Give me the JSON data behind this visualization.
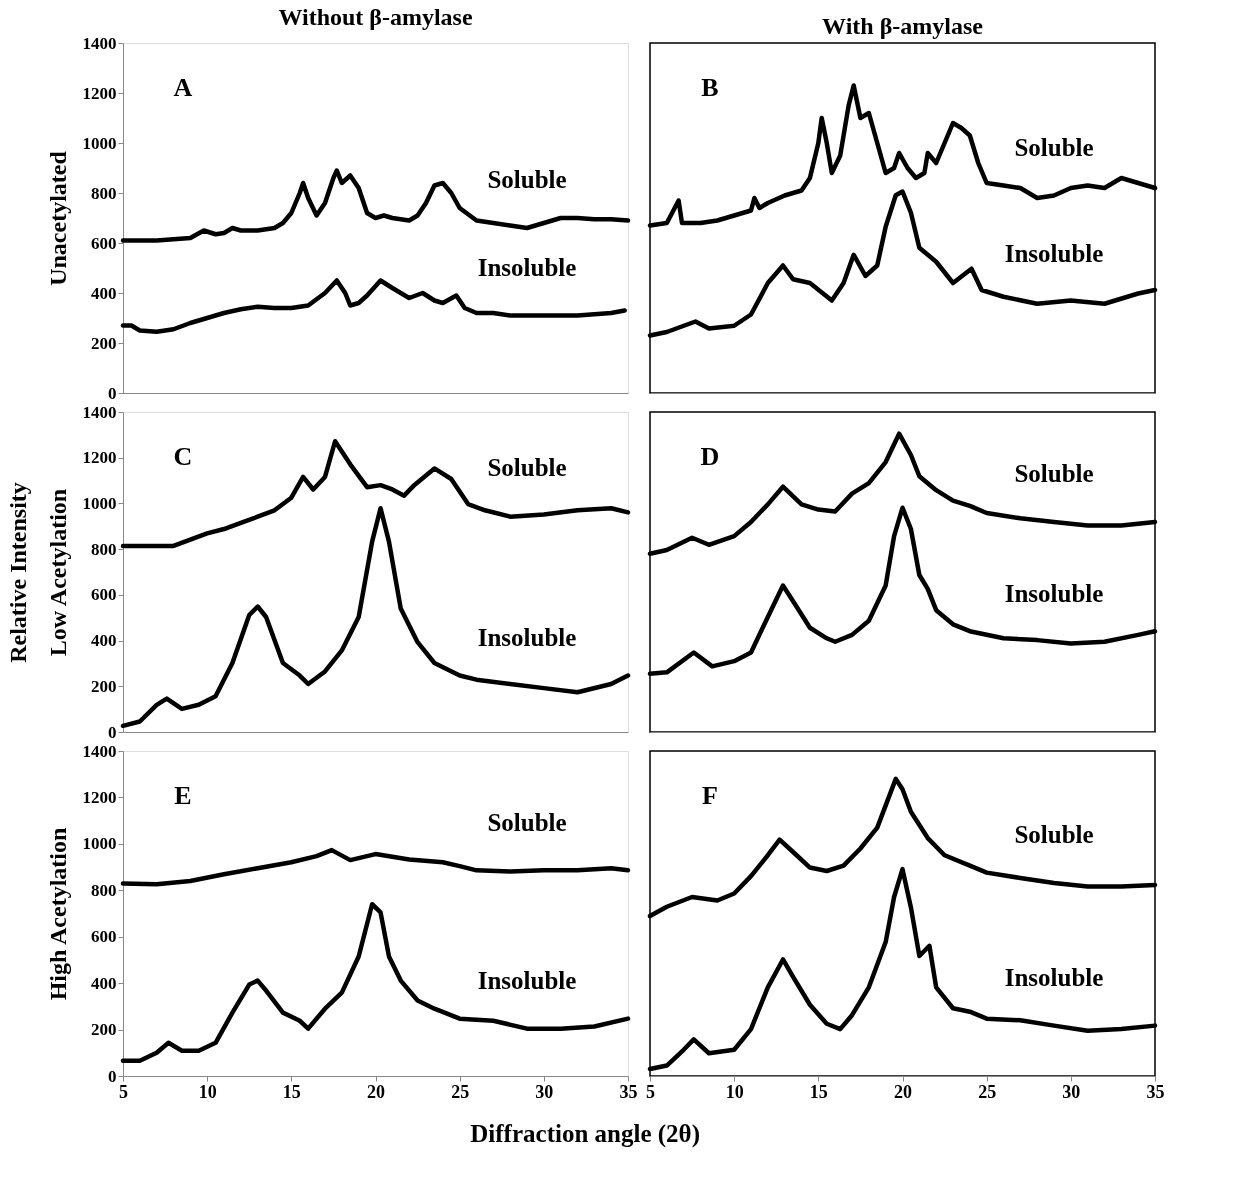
{
  "chart_data": [
    {
      "type": "line",
      "title": "Without β-amylase",
      "ylabel": "Unacetylated",
      "xlim": [
        5,
        35
      ],
      "ylim": [
        0,
        1400
      ],
      "xticks": [
        5,
        10,
        15,
        20,
        25,
        30,
        35
      ],
      "yticks": [
        0,
        200,
        400,
        600,
        800,
        1000,
        1200,
        1400
      ],
      "tick_labels": "y",
      "grid": false,
      "line_style": "solid",
      "annotations": [
        "A"
      ],
      "series": [
        {
          "name": "Soluble",
          "color": "#000000",
          "x": [
            5,
            6,
            7,
            8,
            9,
            9.8,
            10.5,
            11,
            11.5,
            12,
            13,
            14,
            14.5,
            15,
            15.5,
            15.7,
            16,
            16.5,
            17,
            17.5,
            17.7,
            18,
            18.5,
            19,
            19.5,
            20,
            20.5,
            21,
            22,
            22.5,
            23,
            23.5,
            24,
            24.5,
            25,
            26,
            27,
            28,
            29,
            30,
            31,
            32,
            33,
            34,
            35
          ],
          "values": [
            610,
            610,
            610,
            615,
            620,
            650,
            635,
            640,
            660,
            650,
            650,
            660,
            680,
            720,
            800,
            840,
            780,
            710,
            760,
            860,
            890,
            840,
            870,
            820,
            720,
            700,
            710,
            700,
            690,
            710,
            760,
            830,
            840,
            800,
            740,
            690,
            680,
            670,
            660,
            680,
            700,
            700,
            695,
            695,
            690
          ]
        },
        {
          "name": "Insoluble",
          "color": "#000000",
          "x": [
            5,
            5.5,
            6,
            7,
            8,
            9,
            10,
            11,
            12,
            13,
            14,
            15,
            16,
            17,
            17.7,
            18.2,
            18.5,
            19,
            19.5,
            20.3,
            21,
            22,
            22.8,
            23.5,
            24,
            24.8,
            25.3,
            26,
            27,
            28,
            30,
            32,
            34,
            34.8
          ],
          "values": [
            270,
            270,
            250,
            245,
            255,
            280,
            300,
            320,
            335,
            345,
            340,
            340,
            350,
            400,
            450,
            400,
            350,
            360,
            390,
            450,
            420,
            380,
            400,
            370,
            360,
            390,
            340,
            320,
            320,
            310,
            310,
            310,
            320,
            330
          ]
        }
      ]
    },
    {
      "type": "line",
      "title": "With β-amylase",
      "xlim": [
        5,
        35
      ],
      "ylim": [
        0,
        1400
      ],
      "xticks": [
        5,
        10,
        15,
        20,
        25,
        30,
        35
      ],
      "yticks": [
        0,
        200,
        400,
        600,
        800,
        1000,
        1200,
        1400
      ],
      "tick_labels": false,
      "grid": false,
      "line_style": "solid",
      "annotations": [
        "B"
      ],
      "series": [
        {
          "name": "Soluble",
          "color": "#000000",
          "x": [
            5,
            6,
            6.7,
            6.9,
            8,
            9,
            10,
            11,
            11.2,
            11.5,
            12,
            13,
            14,
            14.5,
            15,
            15.2,
            15.5,
            15.8,
            16.3,
            16.8,
            17.1,
            17.5,
            18,
            18.5,
            19,
            19.5,
            19.8,
            20.3,
            20.8,
            21.3,
            21.5,
            22,
            22.5,
            23,
            23.5,
            24,
            24.5,
            25,
            26,
            27,
            28,
            29,
            30,
            31,
            32,
            33,
            34,
            35
          ],
          "values": [
            670,
            680,
            770,
            680,
            680,
            690,
            710,
            730,
            780,
            740,
            760,
            790,
            810,
            860,
            1000,
            1100,
            1000,
            880,
            950,
            1150,
            1230,
            1100,
            1120,
            1000,
            880,
            900,
            960,
            900,
            860,
            880,
            960,
            920,
            1000,
            1080,
            1060,
            1030,
            920,
            840,
            830,
            820,
            780,
            790,
            820,
            830,
            820,
            860,
            840,
            820
          ]
        },
        {
          "name": "Insoluble",
          "color": "#000000",
          "x": [
            5,
            6,
            7.7,
            8.5,
            10,
            11,
            12,
            12.9,
            13.5,
            14.5,
            15.8,
            16.5,
            17.1,
            17.8,
            18.5,
            19,
            19.6,
            20,
            20.5,
            21,
            22,
            23,
            24.1,
            24.7,
            26,
            28,
            30,
            32,
            34,
            35
          ],
          "values": [
            230,
            244,
            286,
            258,
            269,
            314,
            440,
            510,
            455,
            440,
            370,
            440,
            553,
            468,
            510,
            665,
            791,
            806,
            721,
            581,
            525,
            440,
            497,
            412,
            385,
            357,
            370,
            357,
            398,
            412
          ]
        }
      ]
    },
    {
      "type": "line",
      "ylabel": "Relative Intensity\nLow Acetylation",
      "xlim": [
        5,
        35
      ],
      "ylim": [
        0,
        1400
      ],
      "xticks": [
        5,
        10,
        15,
        20,
        25,
        30,
        35
      ],
      "yticks": [
        0,
        200,
        400,
        600,
        800,
        1000,
        1200,
        1400
      ],
      "tick_labels": "y",
      "grid": false,
      "line_style": "solid",
      "annotations": [
        "C"
      ],
      "series": [
        {
          "name": "Soluble",
          "color": "#000000",
          "x": [
            5,
            7,
            8,
            9,
            10,
            11,
            12,
            13,
            14,
            15,
            15.7,
            16.3,
            17,
            17.6,
            18.5,
            19.5,
            20.3,
            21,
            21.7,
            22.3,
            23.5,
            24.5,
            25.5,
            26.5,
            28,
            30,
            32,
            34,
            35
          ],
          "values": [
            814,
            814,
            814,
            842,
            869,
            888,
            915,
            942,
            970,
            1025,
            1116,
            1061,
            1116,
            1272,
            1171,
            1071,
            1080,
            1061,
            1034,
            1080,
            1153,
            1107,
            997,
            970,
            942,
            952,
            970,
            979,
            961
          ]
        },
        {
          "name": "Insoluble",
          "color": "#000000",
          "x": [
            5,
            6,
            7,
            7.6,
            8.5,
            9.5,
            10.5,
            11.5,
            12.5,
            13,
            13.5,
            14.5,
            15.5,
            16,
            17,
            18,
            19,
            19.8,
            20.3,
            20.8,
            21.5,
            22.5,
            23.5,
            25,
            26,
            28,
            30,
            32,
            34,
            35
          ],
          "values": [
            27,
            46,
            119,
            146,
            101,
            119,
            156,
            302,
            512,
            549,
            503,
            302,
            247,
            210,
            265,
            357,
            503,
            833,
            979,
            833,
            540,
            393,
            302,
            247,
            229,
            210,
            192,
            174,
            210,
            247
          ]
        }
      ]
    },
    {
      "type": "line",
      "xlim": [
        5,
        35
      ],
      "ylim": [
        0,
        1400
      ],
      "xticks": [
        5,
        10,
        15,
        20,
        25,
        30,
        35
      ],
      "yticks": [
        0,
        200,
        400,
        600,
        800,
        1000,
        1200,
        1400
      ],
      "tick_labels": false,
      "grid": false,
      "line_style": "solid",
      "annotations": [
        "D"
      ],
      "series": [
        {
          "name": "Soluble",
          "color": "#000000",
          "x": [
            5,
            6,
            7.5,
            8.5,
            10,
            11,
            12,
            12.9,
            14,
            15,
            16,
            17,
            18,
            19,
            19.8,
            20.5,
            21,
            22,
            23,
            24,
            25,
            27,
            29,
            31,
            33,
            35
          ],
          "values": [
            780,
            796,
            850,
            819,
            857,
            919,
            996,
            1073,
            996,
            973,
            965,
            1043,
            1089,
            1181,
            1305,
            1212,
            1119,
            1058,
            1012,
            989,
            958,
            935,
            919,
            903,
            903,
            919
          ]
        },
        {
          "name": "Insoluble",
          "color": "#000000",
          "x": [
            5,
            6,
            7.6,
            8.7,
            10,
            11,
            12,
            12.9,
            13.7,
            14.5,
            15.5,
            16,
            17,
            18,
            19,
            19.5,
            20,
            20.5,
            21,
            21.5,
            22,
            23,
            24,
            26,
            28,
            30,
            32,
            34,
            35
          ],
          "values": [
            255,
            261,
            348,
            287,
            310,
            348,
            503,
            641,
            549,
            456,
            410,
            395,
            425,
            487,
            641,
            857,
            981,
            888,
            687,
            626,
            533,
            471,
            441,
            410,
            402,
            387,
            395,
            425,
            441
          ]
        }
      ]
    },
    {
      "type": "line",
      "ylabel": "High Acetylation",
      "xlabel": "Diffraction angle (2θ)",
      "xlim": [
        5,
        35
      ],
      "ylim": [
        0,
        1400
      ],
      "xticks": [
        5,
        10,
        15,
        20,
        25,
        30,
        35
      ],
      "yticks": [
        0,
        200,
        400,
        600,
        800,
        1000,
        1200,
        1400
      ],
      "grid": false,
      "line_style": "solid",
      "annotations": [
        "E"
      ],
      "series": [
        {
          "name": "Soluble",
          "color": "#000000",
          "x": [
            5,
            7,
            9,
            11,
            13,
            15,
            16.5,
            17.4,
            18.5,
            20,
            22,
            24,
            25,
            26,
            28,
            30,
            32,
            34,
            35
          ],
          "values": [
            829,
            826,
            840,
            869,
            895,
            921,
            947,
            973,
            930,
            956,
            933,
            921,
            904,
            886,
            881,
            886,
            886,
            895,
            886
          ]
        },
        {
          "name": "Insoluble",
          "color": "#000000",
          "x": [
            5,
            6,
            7,
            7.7,
            8.5,
            9.5,
            10.5,
            11.5,
            12.5,
            13,
            13.5,
            14.5,
            15.5,
            16,
            17,
            18,
            19,
            19.8,
            20.3,
            20.8,
            21.5,
            22.5,
            23.5,
            25,
            27,
            29,
            31,
            33,
            35
          ],
          "values": [
            66,
            66,
            100,
            143,
            109,
            109,
            143,
            273,
            394,
            411,
            368,
            273,
            238,
            204,
            290,
            359,
            515,
            740,
            705,
            515,
            411,
            325,
            290,
            247,
            238,
            204,
            204,
            213,
            247
          ]
        }
      ]
    },
    {
      "type": "line",
      "xlim": [
        5,
        35
      ],
      "ylim": [
        0,
        1400
      ],
      "xticks": [
        5,
        10,
        15,
        20,
        25,
        30,
        35
      ],
      "yticks": [
        0,
        200,
        400,
        600,
        800,
        1000,
        1200,
        1400
      ],
      "tick_labels": "x",
      "grid": false,
      "line_style": "solid",
      "annotations": [
        "F"
      ],
      "series": [
        {
          "name": "Soluble",
          "color": "#000000",
          "x": [
            5,
            6,
            7.5,
            9,
            10,
            11,
            12,
            12.7,
            13.5,
            14.5,
            15.5,
            16.5,
            17.5,
            18.5,
            19.6,
            20,
            20.5,
            21.5,
            22.5,
            24,
            25,
            27,
            29,
            31,
            33,
            35
          ],
          "values": [
            689,
            729,
            771,
            756,
            786,
            861,
            951,
            1018,
            965,
            898,
            883,
            906,
            980,
            1070,
            1280,
            1235,
            1138,
            1025,
            951,
            906,
            876,
            853,
            831,
            816,
            816,
            823
          ]
        },
        {
          "name": "Insoluble",
          "color": "#000000",
          "x": [
            5,
            6,
            7,
            7.6,
            8.5,
            10,
            11,
            12,
            12.9,
            13.5,
            14.5,
            15.5,
            16.3,
            17,
            18,
            19,
            19.5,
            20,
            20.5,
            21,
            21.6,
            22,
            23,
            24,
            25,
            27,
            29,
            31,
            33,
            35
          ],
          "values": [
            30,
            45,
            113,
            158,
            98,
            113,
            202,
            382,
            502,
            427,
            307,
            225,
            202,
            262,
            382,
            577,
            771,
            891,
            726,
            517,
            561,
            382,
            292,
            277,
            247,
            240,
            217,
            195,
            202,
            217
          ]
        }
      ]
    }
  ]
}
